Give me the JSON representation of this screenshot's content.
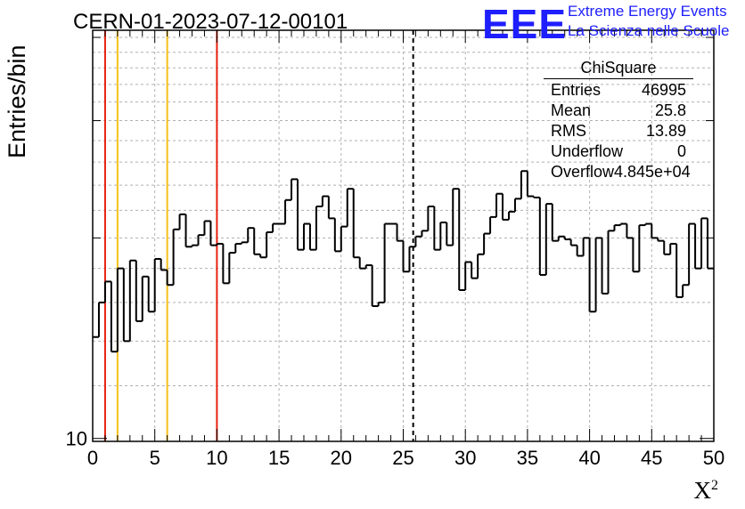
{
  "header": {
    "run_title": "CERN-01-2023-07-12-00101",
    "logo_text": "EEE",
    "logo_line1": "Extreme Energy Events",
    "logo_line2": "La Scienza nelle Scuole",
    "logo_color": "#1e1eff"
  },
  "stats": {
    "title": "ChiSquare",
    "rows": [
      {
        "label": "Entries",
        "value": "46995"
      },
      {
        "label": "Mean",
        "value": "25.8"
      },
      {
        "label": "RMS",
        "value": "13.89"
      },
      {
        "label": "Underflow",
        "value": "0"
      },
      {
        "label": "Overflow",
        "value": "4.845e+04"
      }
    ]
  },
  "chart_data": {
    "type": "histogram",
    "title": "CERN-01-2023-07-12-00101",
    "xlabel": "X",
    "xlabel_superscript": "2",
    "ylabel": "Entries/bin",
    "xlim": [
      0,
      50
    ],
    "xticks": [
      "0",
      "5",
      "10",
      "15",
      "20",
      "25",
      "30",
      "35",
      "40",
      "45",
      "50"
    ],
    "yscale": "log",
    "ytick_labels": [
      "10"
    ],
    "ylim": [
      9.9,
      41
    ],
    "grid": true,
    "bin_width": 0.5,
    "values": [
      14.2,
      16.0,
      17.2,
      13.5,
      18.0,
      14.0,
      18.5,
      15.0,
      17.5,
      15.5,
      18.6,
      17.9,
      17.0,
      20.6,
      21.7,
      19.4,
      19.5,
      20.2,
      21.2,
      19.5,
      19.6,
      17.1,
      19.0,
      19.6,
      19.7,
      20.7,
      18.9,
      18.7,
      20.4,
      21.0,
      21.0,
      22.8,
      24.5,
      19.2,
      21.0,
      19.2,
      22.3,
      23.1,
      21.4,
      19.1,
      20.8,
      23.7,
      18.7,
      18.0,
      18.2,
      15.8,
      16.0,
      21.0,
      21.0,
      19.8,
      17.8,
      19.4,
      20.1,
      20.5,
      22.3,
      19.2,
      21.1,
      19.5,
      23.7,
      16.7,
      18.4,
      17.4,
      18.9,
      20.3,
      21.5,
      23.3,
      21.3,
      21.9,
      22.9,
      25.2,
      23.1,
      23.0,
      17.6,
      22.5,
      19.8,
      20.1,
      19.9,
      19.5,
      18.8,
      20.0,
      15.5,
      20.0,
      16.5,
      20.5,
      20.9,
      21.0,
      20.0,
      17.8,
      20.9,
      21.0,
      20.0,
      19.8,
      18.9,
      19.6,
      16.3,
      17.0,
      21.0,
      18.0,
      21.4,
      18.0
    ],
    "series": [
      {
        "name": "ChiSquare",
        "color": "#000000"
      }
    ],
    "reference_lines": [
      {
        "x": 1,
        "color": "#e8220e",
        "style": "solid"
      },
      {
        "x": 2,
        "color": "#f6c018",
        "style": "solid"
      },
      {
        "x": 6,
        "color": "#f6c018",
        "style": "solid"
      },
      {
        "x": 10,
        "color": "#e8220e",
        "style": "solid"
      },
      {
        "x": 25.8,
        "color": "#000000",
        "style": "dashed"
      }
    ]
  }
}
